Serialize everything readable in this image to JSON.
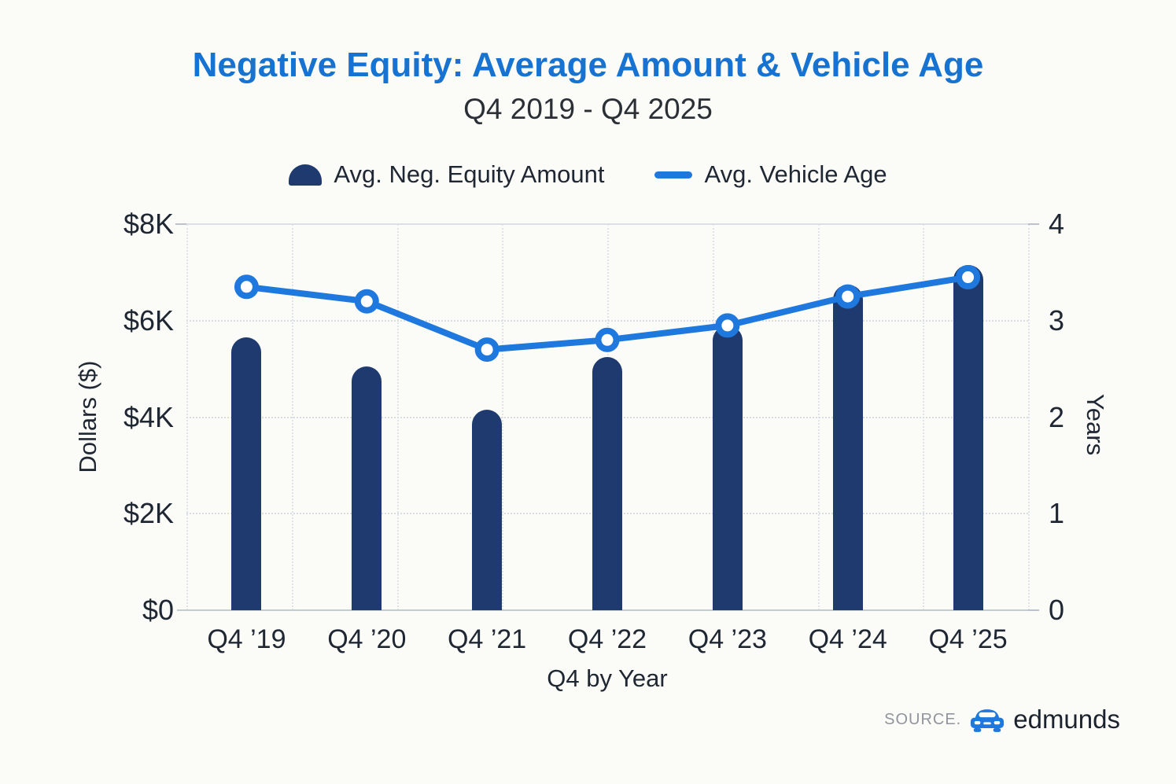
{
  "page": {
    "background": "#fbfbf8"
  },
  "header": {
    "title": "Negative Equity: Average Amount & Vehicle Age",
    "subtitle": "Q4 2019 - Q4 2025",
    "title_color": "#1673d2"
  },
  "legend": {
    "position": "top center",
    "items": [
      {
        "label": "Avg. Neg. Equity Amount",
        "swatch": "bar-dome",
        "color": "#1f3a6e"
      },
      {
        "label": "Avg. Vehicle Age",
        "swatch": "line-dash",
        "color": "#1e78de"
      }
    ]
  },
  "chart_data": {
    "type": "bar",
    "subtype": "bar+line combo, dual y-axes",
    "categories": [
      "Q4 ’19",
      "Q4 ’20",
      "Q4 ’21",
      "Q4 ’22",
      "Q4 ’23",
      "Q4 ’24",
      "Q4 ’25"
    ],
    "series": [
      {
        "name": "Avg. Neg. Equity Amount",
        "type": "bar",
        "axis": "left",
        "unit": "dollars",
        "color": "#1f3a6e",
        "values": [
          5650,
          5050,
          4150,
          5250,
          5900,
          6750,
          7150
        ]
      },
      {
        "name": "Avg. Vehicle Age",
        "type": "line",
        "axis": "right",
        "unit": "years",
        "color": "#1e78de",
        "marker": "circle-white-core",
        "values": [
          3.35,
          3.2,
          2.7,
          2.8,
          2.95,
          3.25,
          3.45
        ]
      }
    ],
    "left_axis": {
      "title": "Dollars ($)",
      "ticks": [
        "$0",
        "$2K",
        "$4K",
        "$6K",
        "$8K"
      ],
      "min": 0,
      "max": 8000
    },
    "right_axis": {
      "title": "Years",
      "ticks": [
        "0",
        "1",
        "2",
        "3",
        "4"
      ],
      "min": 0,
      "max": 4
    },
    "x_axis": {
      "title": "Q4 by Year"
    },
    "grid": "light dotted horizontal and vertical gridlines",
    "legend_position": "top"
  },
  "footer": {
    "source_label": "SOURCE.",
    "brand": "edmunds",
    "brand_icon": "car-icon"
  }
}
